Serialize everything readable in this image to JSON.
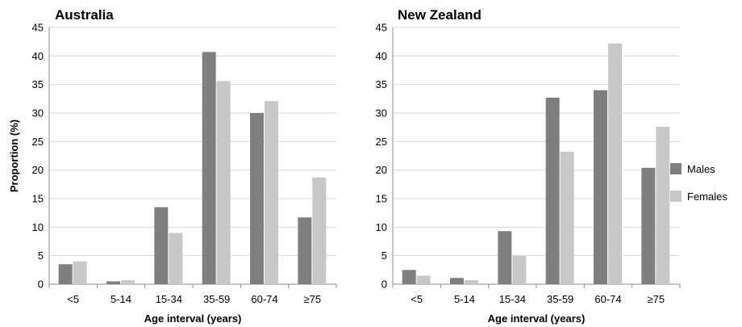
{
  "chart_data": [
    {
      "type": "bar",
      "title": "Australia",
      "categories": [
        "<5",
        "5-14",
        "15-34",
        "35-59",
        "60-74",
        "≥75"
      ],
      "series": [
        {
          "name": "Males",
          "values": [
            3.5,
            0.5,
            13.5,
            40.7,
            30.0,
            11.7
          ]
        },
        {
          "name": "Females",
          "values": [
            4.0,
            0.7,
            9.0,
            35.6,
            32.1,
            18.7
          ]
        }
      ],
      "xlabel": "Age interval (years)",
      "ylabel": "Proportion (%)",
      "ylim": [
        0,
        45
      ],
      "yticks": [
        0,
        5,
        10,
        15,
        20,
        25,
        30,
        35,
        40,
        45
      ],
      "grid": true
    },
    {
      "type": "bar",
      "title": "New Zealand",
      "categories": [
        "<5",
        "5-14",
        "15-34",
        "35-59",
        "60-74",
        "≥75"
      ],
      "series": [
        {
          "name": "Males",
          "values": [
            2.5,
            1.1,
            9.3,
            32.7,
            34.0,
            20.4
          ]
        },
        {
          "name": "Females",
          "values": [
            1.5,
            0.7,
            5.0,
            23.2,
            42.2,
            27.6
          ]
        }
      ],
      "xlabel": "Age interval (years)",
      "ylabel": "",
      "ylim": [
        0,
        45
      ],
      "yticks": [
        0,
        5,
        10,
        15,
        20,
        25,
        30,
        35,
        40,
        45
      ],
      "grid": true
    }
  ],
  "legend": {
    "placement": "right",
    "items": [
      {
        "label": "Males",
        "color": "#7f7f7f"
      },
      {
        "label": "Females",
        "color": "#c8c8c8"
      }
    ]
  },
  "colors": {
    "males": "#7f7f7f",
    "females": "#c8c8c8",
    "grid": "#d9d9d9",
    "axis": "#8c8c8c"
  }
}
